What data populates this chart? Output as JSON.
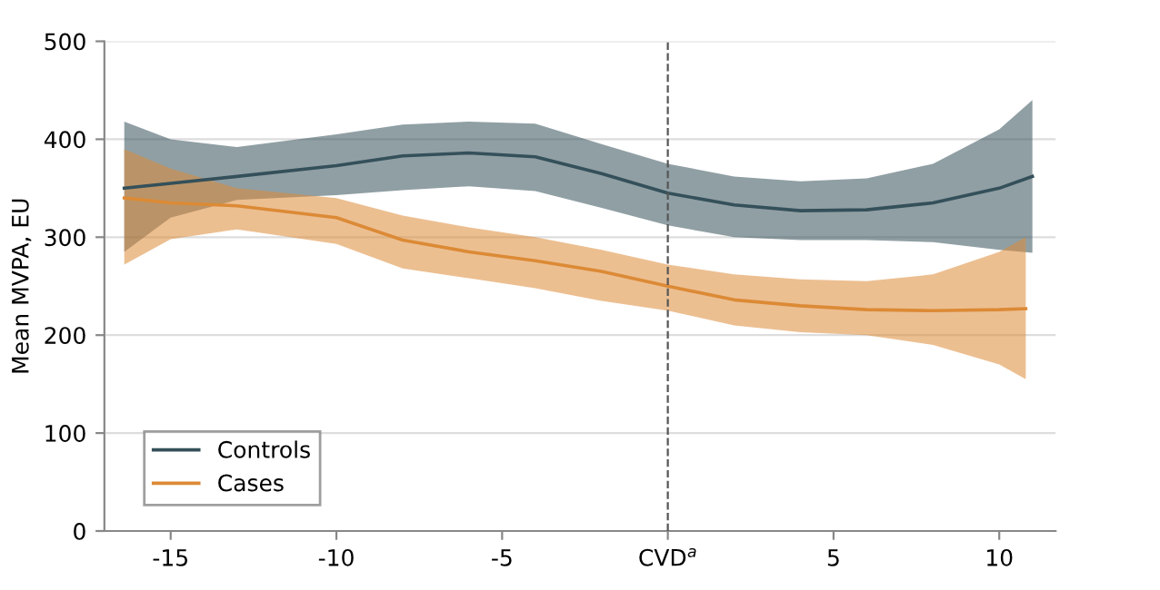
{
  "chart_data": {
    "type": "line",
    "ylabel": "Mean MVPA, EU",
    "xlim": [
      -17,
      11.7
    ],
    "ylim": [
      0,
      500
    ],
    "xticks": [
      -15,
      -10,
      -5,
      {
        "value": 0,
        "label": "CVD$^{a}$"
      },
      5,
      10
    ],
    "yticks": [
      0,
      100,
      200,
      300,
      400,
      500
    ],
    "grid": "y",
    "legend": "bottom left",
    "marker": "none",
    "line_style": "solid",
    "ref_lines": [
      {
        "axis": "x",
        "value": 0,
        "label": null,
        "color": "#555555",
        "line_style": "dashed"
      }
    ],
    "series": [
      {
        "name": "Controls",
        "color": "#34505a",
        "x": [
          -16.4,
          -15,
          -13,
          -10,
          -8,
          -6,
          -4,
          -2,
          0,
          2,
          4,
          6,
          8,
          10,
          11
        ],
        "values": [
          350,
          355,
          362,
          373,
          383,
          386,
          382,
          365,
          345,
          333,
          327,
          328,
          335,
          350,
          362
        ],
        "upper": [
          418,
          400,
          392,
          405,
          415,
          418,
          416,
          395,
          375,
          362,
          357,
          360,
          375,
          410,
          440
        ],
        "lower": [
          285,
          320,
          338,
          343,
          348,
          352,
          347,
          330,
          312,
          300,
          297,
          297,
          295,
          287,
          284
        ]
      },
      {
        "name": "Cases",
        "color": "#dc8a36",
        "x": [
          -16.4,
          -15,
          -13,
          -10,
          -8,
          -6,
          -4,
          -2,
          0,
          2,
          4,
          6,
          8,
          10,
          10.8
        ],
        "values": [
          340,
          335,
          332,
          320,
          297,
          285,
          276,
          265,
          250,
          236,
          230,
          226,
          225,
          226,
          227
        ],
        "upper": [
          390,
          370,
          350,
          340,
          322,
          310,
          300,
          287,
          272,
          262,
          257,
          255,
          262,
          285,
          300
        ],
        "lower": [
          272,
          298,
          308,
          293,
          268,
          258,
          248,
          235,
          225,
          210,
          203,
          200,
          190,
          170,
          155
        ]
      }
    ]
  }
}
